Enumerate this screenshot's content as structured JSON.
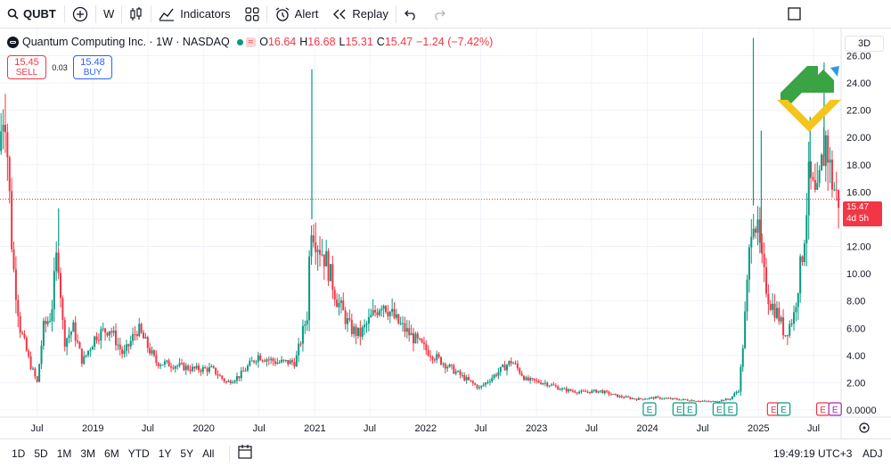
{
  "toolbar": {
    "symbol": "QUBT",
    "interval": "W",
    "indicators_label": "Indicators",
    "alert_label": "Alert",
    "replay_label": "Replay"
  },
  "legend": {
    "name": "Quantum Computing Inc. · 1W · NASDAQ",
    "o_key": "O",
    "o_val": "16.64",
    "h_key": "H",
    "h_val": "16.68",
    "l_key": "L",
    "l_val": "15.31",
    "c_key": "C",
    "c_val": "15.47",
    "change": "−1.24 (−7.42%)"
  },
  "trade": {
    "sell_price": "15.45",
    "sell_label": "SELL",
    "spread": "0.03",
    "buy_price": "15.48",
    "buy_label": "BUY"
  },
  "current": {
    "price": "15.47",
    "countdown": "4d 5h"
  },
  "scale_button": "3D",
  "bottom": {
    "ranges": [
      "1D",
      "5D",
      "1M",
      "3M",
      "6M",
      "YTD",
      "1Y",
      "5Y",
      "All"
    ],
    "clock": "19:49:19 UTC+3",
    "adj": "ADJ"
  },
  "colors": {
    "up": "#089981",
    "down": "#f23645",
    "grid": "#f0f3fa"
  },
  "chart_data": {
    "type": "candlestick",
    "title": "Quantum Computing Inc. · 1W · NASDAQ",
    "ylim": [
      0,
      27.6
    ],
    "y_ticks": [
      0,
      2,
      4,
      6,
      8,
      10,
      12,
      14,
      16,
      18,
      20,
      22,
      24,
      26
    ],
    "y_tick_labels": [
      "0.0000",
      "2.00",
      "4.00",
      "6.00",
      "8.00",
      "10.00",
      "12.00",
      "14.00",
      "16.00",
      "18.00",
      "20.00",
      "22.00",
      "24.00",
      "26.00"
    ],
    "x_range": [
      "2018-03-01",
      "2025-09-30"
    ],
    "x_ticks": [
      {
        "date": "2018-07-01",
        "label": "Jul"
      },
      {
        "date": "2019-01-01",
        "label": "2019"
      },
      {
        "date": "2019-07-01",
        "label": "Jul"
      },
      {
        "date": "2020-01-01",
        "label": "2020"
      },
      {
        "date": "2020-07-01",
        "label": "Jul"
      },
      {
        "date": "2021-01-01",
        "label": "2021"
      },
      {
        "date": "2021-07-01",
        "label": "Jul"
      },
      {
        "date": "2022-01-01",
        "label": "2022"
      },
      {
        "date": "2022-07-01",
        "label": "Jul"
      },
      {
        "date": "2023-01-01",
        "label": "2023"
      },
      {
        "date": "2023-07-01",
        "label": "Jul"
      },
      {
        "date": "2024-01-01",
        "label": "2024"
      },
      {
        "date": "2024-07-01",
        "label": "Jul"
      },
      {
        "date": "2025-01-01",
        "label": "2025"
      },
      {
        "date": "2025-07-01",
        "label": "Jul"
      }
    ],
    "price_path": [
      [
        "2018-03-01",
        19
      ],
      [
        "2018-03-20",
        23
      ],
      [
        "2018-04-15",
        11
      ],
      [
        "2018-05-10",
        6
      ],
      [
        "2018-06-10",
        3.5
      ],
      [
        "2018-07-05",
        2
      ],
      [
        "2018-07-25",
        6
      ],
      [
        "2018-08-20",
        7
      ],
      [
        "2018-09-10",
        12
      ],
      [
        "2018-10-01",
        5
      ],
      [
        "2018-11-01",
        6
      ],
      [
        "2018-12-01",
        3.5
      ],
      [
        "2019-01-15",
        5.5
      ],
      [
        "2019-03-01",
        6
      ],
      [
        "2019-04-15",
        4
      ],
      [
        "2019-06-01",
        6
      ],
      [
        "2019-08-01",
        3.5
      ],
      [
        "2019-10-01",
        3.3
      ],
      [
        "2019-12-01",
        3
      ],
      [
        "2020-02-01",
        3
      ],
      [
        "2020-03-20",
        2
      ],
      [
        "2020-05-01",
        2.5
      ],
      [
        "2020-07-01",
        4
      ],
      [
        "2020-09-01",
        3.5
      ],
      [
        "2020-11-01",
        3.5
      ],
      [
        "2020-12-10",
        7
      ],
      [
        "2020-12-22",
        14
      ],
      [
        "2021-01-10",
        12.5
      ],
      [
        "2021-02-10",
        11
      ],
      [
        "2021-03-20",
        8
      ],
      [
        "2021-05-01",
        6
      ],
      [
        "2021-06-01",
        5.5
      ],
      [
        "2021-07-01",
        6.5
      ],
      [
        "2021-08-15",
        8
      ],
      [
        "2021-10-01",
        6.5
      ],
      [
        "2021-11-15",
        5.5
      ],
      [
        "2022-01-01",
        4.5
      ],
      [
        "2022-03-01",
        3.5
      ],
      [
        "2022-05-01",
        2.5
      ],
      [
        "2022-07-01",
        1.6
      ],
      [
        "2022-09-01",
        2.8
      ],
      [
        "2022-10-15",
        3.6
      ],
      [
        "2022-12-01",
        2.2
      ],
      [
        "2023-02-01",
        2
      ],
      [
        "2023-04-01",
        1.5
      ],
      [
        "2023-06-01",
        1.3
      ],
      [
        "2023-08-01",
        1.4
      ],
      [
        "2023-10-01",
        1.0
      ],
      [
        "2023-12-01",
        0.8
      ],
      [
        "2024-02-01",
        0.9
      ],
      [
        "2024-04-01",
        0.8
      ],
      [
        "2024-06-01",
        0.7
      ],
      [
        "2024-08-01",
        0.6
      ],
      [
        "2024-10-01",
        0.8
      ],
      [
        "2024-11-01",
        1.5
      ],
      [
        "2024-11-15",
        5
      ],
      [
        "2024-12-01",
        10
      ],
      [
        "2024-12-15",
        15
      ],
      [
        "2025-01-01",
        13
      ],
      [
        "2025-01-20",
        10
      ],
      [
        "2025-02-10",
        8
      ],
      [
        "2025-03-10",
        7
      ],
      [
        "2025-04-01",
        5.5
      ],
      [
        "2025-05-01",
        7
      ],
      [
        "2025-06-01",
        12
      ],
      [
        "2025-06-20",
        17
      ],
      [
        "2025-07-15",
        15
      ],
      [
        "2025-08-01",
        18
      ],
      [
        "2025-08-15",
        20
      ],
      [
        "2025-09-01",
        17
      ],
      [
        "2025-09-20",
        15.5
      ]
    ],
    "spikes": [
      {
        "date": "2018-09-10",
        "high": 14.8
      },
      {
        "date": "2020-12-22",
        "high": 25.0
      },
      {
        "date": "2024-12-15",
        "high": 27.3
      },
      {
        "date": "2025-01-10",
        "high": 20.5
      },
      {
        "date": "2025-06-20",
        "high": 21.5
      },
      {
        "date": "2025-08-05",
        "high": 25.5
      }
    ],
    "last_price": 15.47,
    "earnings_markers": [
      {
        "date": "2024-01-08",
        "type": "up"
      },
      {
        "date": "2024-04-15",
        "type": "up"
      },
      {
        "date": "2024-05-20",
        "type": "up"
      },
      {
        "date": "2024-08-25",
        "type": "up"
      },
      {
        "date": "2024-10-01",
        "type": "up"
      },
      {
        "date": "2025-02-20",
        "type": "down"
      },
      {
        "date": "2025-03-25",
        "type": "up"
      },
      {
        "date": "2025-08-01",
        "type": "down"
      },
      {
        "date": "2025-09-10",
        "type": "future"
      }
    ]
  }
}
